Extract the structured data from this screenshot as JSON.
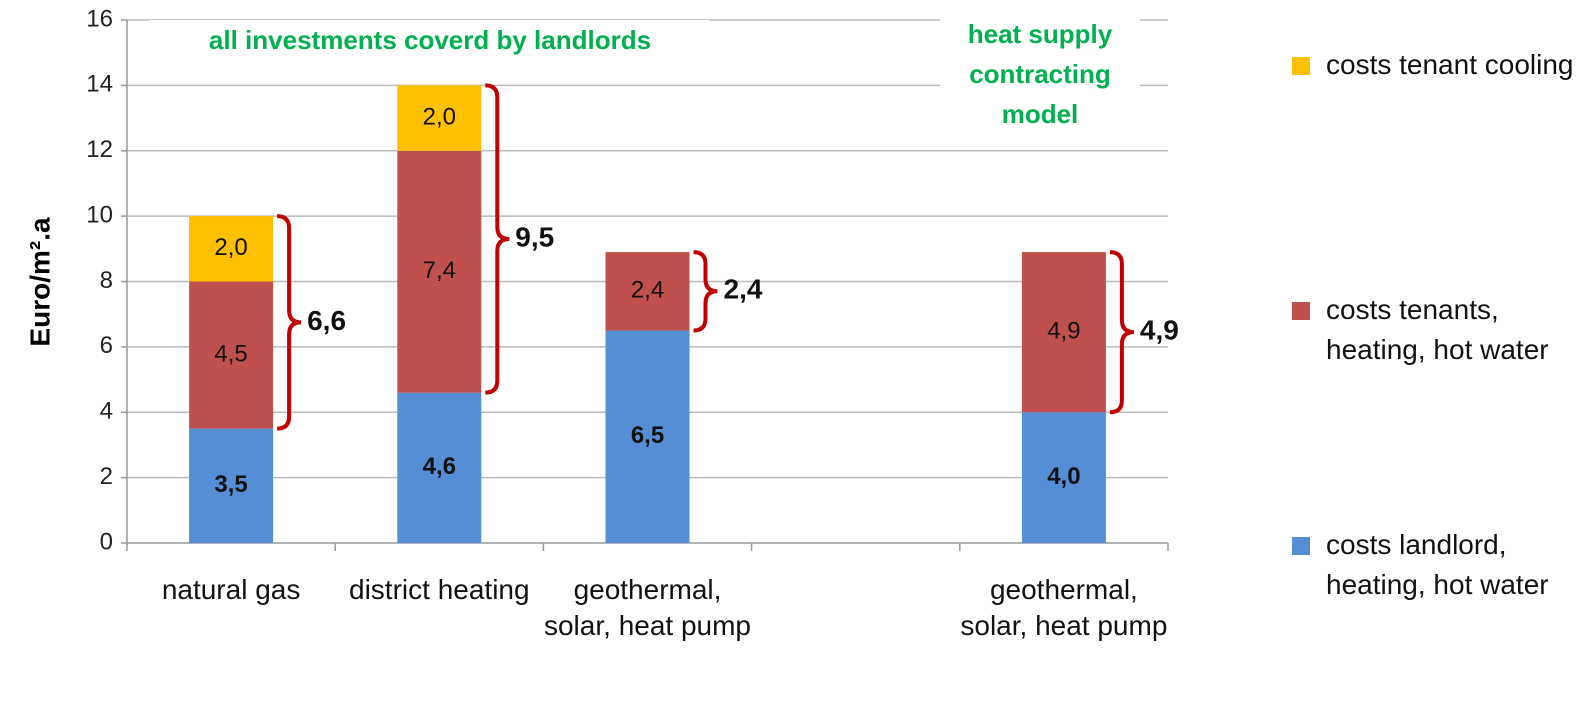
{
  "chart_data": {
    "type": "stacked_bar",
    "y_label": "Euro/m².a",
    "categories": [
      "natural gas",
      "district heating",
      "geothermal, solar, heat pump",
      null,
      "geothermal, solar, heat pump"
    ],
    "series": [
      {
        "name": "costs landlord, heating, hot water",
        "color": "#558ed5",
        "values": [
          3.5,
          4.6,
          6.5,
          null,
          4.0
        ],
        "value_labels": [
          "3,5",
          "4,6",
          "6,5",
          null,
          "4,0"
        ]
      },
      {
        "name": "costs tenants, heating,  hot water",
        "color": "#c0504d",
        "values": [
          4.5,
          7.4,
          2.4,
          null,
          4.9
        ],
        "value_labels": [
          "4,5",
          "7,4",
          "2,4",
          null,
          "4,9"
        ]
      },
      {
        "name": "costs tenant cooling",
        "color": "#ffc000",
        "values": [
          2.0,
          2.0,
          null,
          null,
          null
        ],
        "value_labels": [
          "2,0",
          "2,0",
          null,
          null,
          null
        ]
      }
    ],
    "brace_values": [
      6.6,
      9.5,
      2.4,
      null,
      4.9
    ],
    "brace_labels": [
      "6,6",
      "9,5",
      "2,4",
      null,
      "4,9"
    ],
    "annotations": [
      "all investments coverd by landlords",
      "heat supply contracting model"
    ],
    "ylim": [
      0,
      16
    ],
    "yticks": [
      0,
      2,
      4,
      6,
      8,
      10,
      12,
      14,
      16
    ],
    "grid": true,
    "legend": "right"
  }
}
